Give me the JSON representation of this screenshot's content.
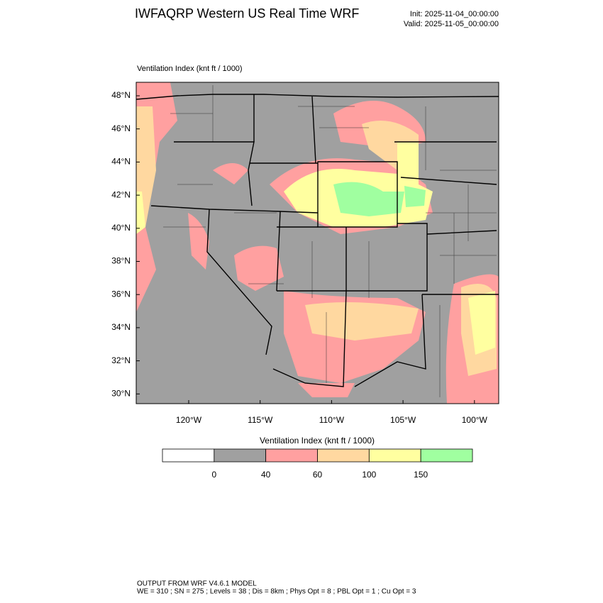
{
  "header": {
    "title": "IWFAQRP Western US Real Time WRF",
    "init": "Init: 2025-11-04_00:00:00",
    "valid": "Valid: 2025-11-05_00:00:00"
  },
  "map": {
    "subtitle": "Ventilation Index   (knt ft / 1000)",
    "lat_labels": [
      "48°N",
      "46°N",
      "44°N",
      "42°N",
      "40°N",
      "38°N",
      "36°N",
      "34°N",
      "32°N",
      "30°N"
    ],
    "lon_labels": [
      "120°W",
      "115°W",
      "110°W",
      "105°W",
      "100°W"
    ]
  },
  "colorbar": {
    "title": "Ventilation Index   (knt ft / 1000)",
    "colors": [
      "#ffffff",
      "#a0a0a0",
      "#ffa0a0",
      "#ffd8a0",
      "#ffffa0",
      "#a0ffa0"
    ],
    "ticks": [
      0,
      40,
      60,
      100,
      150
    ]
  },
  "footer": {
    "line1": "OUTPUT FROM WRF V4.6.1 MODEL",
    "line2": "WE = 310 ; SN = 275 ; Levels = 38 ; Dis = 8km ; Phys Opt = 8 ; PBL Opt = 1 ; Cu Opt = 3"
  }
}
